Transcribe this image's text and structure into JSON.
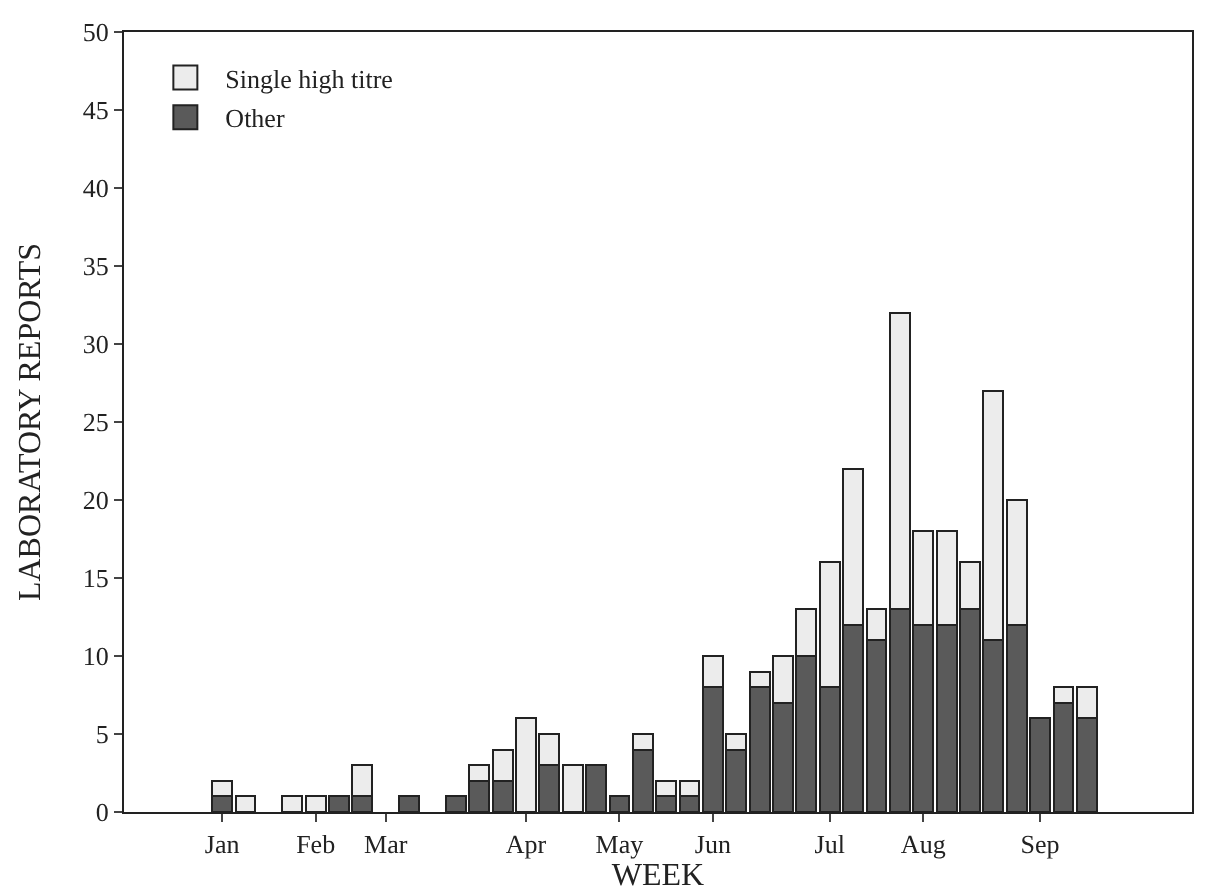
{
  "chart_data": {
    "type": "bar",
    "stacked": true,
    "xlabel": "WEEK",
    "ylabel": "LABORATORY REPORTS",
    "categories": [
      "Jan",
      null,
      null,
      null,
      "Feb",
      null,
      null,
      "Mar",
      null,
      null,
      null,
      null,
      null,
      "Apr",
      null,
      null,
      null,
      "May",
      null,
      null,
      null,
      "Jun",
      null,
      null,
      null,
      null,
      "Jul",
      null,
      null,
      null,
      "Aug",
      null,
      null,
      null,
      null,
      "Sep",
      null,
      null
    ],
    "series": [
      {
        "name": "Other",
        "color": "#5a5a5a",
        "values": [
          1,
          0,
          null,
          0,
          0,
          1,
          1,
          null,
          1,
          null,
          1,
          2,
          2,
          0,
          3,
          0,
          3,
          1,
          4,
          1,
          1,
          8,
          4,
          8,
          7,
          10,
          8,
          12,
          11,
          13,
          12,
          12,
          13,
          11,
          12,
          6,
          7,
          6
        ]
      },
      {
        "name": "Single high titre",
        "color": "#ececec",
        "values": [
          1,
          1,
          null,
          1,
          1,
          0,
          2,
          null,
          0,
          null,
          0,
          1,
          2,
          6,
          2,
          3,
          0,
          0,
          1,
          1,
          1,
          2,
          1,
          1,
          3,
          3,
          8,
          10,
          2,
          19,
          6,
          6,
          3,
          16,
          8,
          0,
          1,
          2
        ]
      }
    ],
    "ylim": [
      0,
      50
    ],
    "yticks": [
      0,
      5,
      10,
      15,
      20,
      25,
      30,
      35,
      40,
      45,
      50
    ],
    "grid": false,
    "legend": "top left"
  }
}
